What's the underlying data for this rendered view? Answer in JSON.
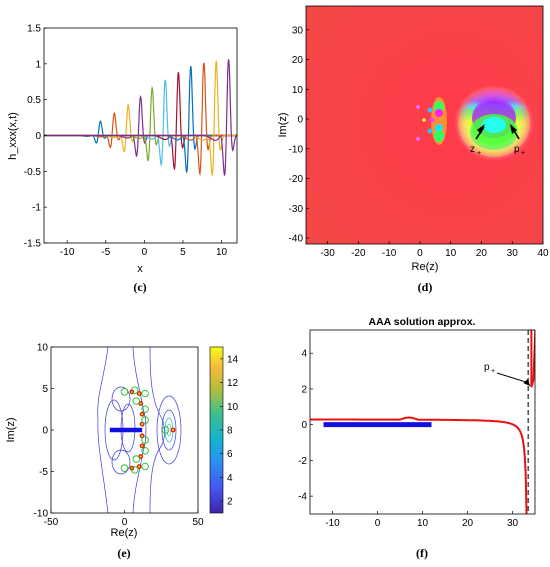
{
  "panels": {
    "c": {
      "sublabel": "(c)",
      "xlabel": "x",
      "ylabel": "h_xxx(x,t)",
      "xlim": [
        -13,
        12
      ],
      "ylim": [
        -1.5,
        1.5
      ],
      "xticks": [
        "-10",
        "-5",
        "0",
        "5",
        "10"
      ],
      "yticks": [
        "-1.5",
        "-1",
        "-0.5",
        "0",
        "0.5",
        "1",
        "1.5"
      ]
    },
    "d": {
      "sublabel": "(d)",
      "xlabel": "Re(z)",
      "ylabel": "Im(z)",
      "xlim": [
        -37,
        40
      ],
      "ylim": [
        -42,
        38
      ],
      "xticks": [
        "-30",
        "-20",
        "-10",
        "0",
        "10",
        "20",
        "30",
        "40"
      ],
      "yticks": [
        "-40",
        "-30",
        "-20",
        "-10",
        "0",
        "10",
        "20",
        "30"
      ],
      "annot_z": "z",
      "annot_z_sub": "+",
      "annot_p": "p",
      "annot_p_sub": "+"
    },
    "e": {
      "sublabel": "(e)",
      "xlabel": "Re(z)",
      "ylabel": "Im(z)",
      "xlim": [
        -50,
        50
      ],
      "ylim": [
        -10,
        10
      ],
      "xticks": [
        "-50",
        "0",
        "50"
      ],
      "yticks": [
        "-10",
        "-5",
        "0",
        "5",
        "10"
      ],
      "cbar_ticks": [
        "2",
        "4",
        "6",
        "8",
        "10",
        "12",
        "14"
      ],
      "cbar_range": [
        1,
        15
      ]
    },
    "f": {
      "sublabel": "(f)",
      "title": "AAA solution approx.",
      "xlim": [
        -15,
        35
      ],
      "ylim": [
        -5,
        5.3
      ],
      "xticks": [
        "-10",
        "0",
        "10",
        "20",
        "30"
      ],
      "yticks": [
        "-4",
        "-2",
        "0",
        "2",
        "4"
      ],
      "annot_p": "p",
      "annot_p_sub": "+"
    }
  },
  "colors": {
    "blue": "#1010e0",
    "red": "#e81010"
  },
  "chart_data": [
    {
      "type": "line",
      "panel": "c",
      "xlabel": "x",
      "ylabel": "h_xxx(x,t)",
      "xlim": [
        -13,
        12
      ],
      "ylim": [
        -1.5,
        1.5
      ],
      "series": [
        {
          "center": -5.8,
          "amplitude": 0.21,
          "color": "#0072bd"
        },
        {
          "center": -4.0,
          "amplitude": 0.33,
          "color": "#d95319"
        },
        {
          "center": -2.2,
          "amplitude": 0.45,
          "color": "#edb120"
        },
        {
          "center": -0.6,
          "amplitude": 0.57,
          "color": "#7e2f8e"
        },
        {
          "center": 0.9,
          "amplitude": 0.7,
          "color": "#77ac30"
        },
        {
          "center": 2.6,
          "amplitude": 0.82,
          "color": "#4dbeee"
        },
        {
          "center": 4.3,
          "amplitude": 0.93,
          "color": "#a2142f"
        },
        {
          "center": 5.9,
          "amplitude": 1.02,
          "color": "#0072bd"
        },
        {
          "center": 7.6,
          "amplitude": 1.07,
          "color": "#d95319"
        },
        {
          "center": 9.2,
          "amplitude": 1.1,
          "color": "#edb120"
        },
        {
          "center": 10.8,
          "amplitude": 1.12,
          "color": "#7e2f8e"
        }
      ]
    },
    {
      "type": "heatmap",
      "panel": "d",
      "xlabel": "Re(z)",
      "ylabel": "Im(z)",
      "features": [
        {
          "kind": "branch-point",
          "label": "z+",
          "x": 28,
          "y": 0
        },
        {
          "kind": "pole",
          "label": "p+",
          "x": 32,
          "y": 0
        },
        {
          "kind": "pole-cluster",
          "x": 9,
          "y": 0
        }
      ]
    },
    {
      "type": "scatter",
      "panel": "e",
      "xlabel": "Re(z)",
      "ylabel": "Im(z)",
      "segment": {
        "x": [
          -10,
          12
        ],
        "y": 0,
        "color": "#1010e0"
      },
      "poles": [
        {
          "x": 5,
          "y": 4.6
        },
        {
          "x": 10,
          "y": 4.4
        },
        {
          "x": 11,
          "y": 3.2
        },
        {
          "x": 12,
          "y": 1.9
        },
        {
          "x": 12,
          "y": 0.7
        },
        {
          "x": 12,
          "y": -0.7
        },
        {
          "x": 12,
          "y": -1.9
        },
        {
          "x": 11,
          "y": -3.2
        },
        {
          "x": 10,
          "y": -4.4
        },
        {
          "x": 5,
          "y": -4.6
        },
        {
          "x": 33,
          "y": 0
        }
      ],
      "zeros": [
        {
          "x": 0,
          "y": 4.6
        },
        {
          "x": 7,
          "y": 4.8
        },
        {
          "x": 8,
          "y": 3.5
        },
        {
          "x": 14,
          "y": 2.5
        },
        {
          "x": 14,
          "y": 1.2
        },
        {
          "x": 14,
          "y": -1.2
        },
        {
          "x": 14,
          "y": -2.5
        },
        {
          "x": 8,
          "y": -3.5
        },
        {
          "x": 7,
          "y": -4.8
        },
        {
          "x": 0,
          "y": -4.6
        },
        {
          "x": 14,
          "y": 4.4
        },
        {
          "x": 14,
          "y": -4.4
        },
        {
          "x": 28,
          "y": 0
        }
      ]
    },
    {
      "type": "line",
      "panel": "f",
      "title": "AAA solution approx.",
      "xlim": [
        -15,
        35
      ],
      "ylim": [
        -5,
        5.3
      ],
      "segment": {
        "x": [
          -12,
          12
        ],
        "y": 0
      },
      "asymptote_x": 33.5,
      "pole_x": 34.2,
      "annotation_point": {
        "x": 34.2,
        "y": 2.1
      }
    }
  ]
}
